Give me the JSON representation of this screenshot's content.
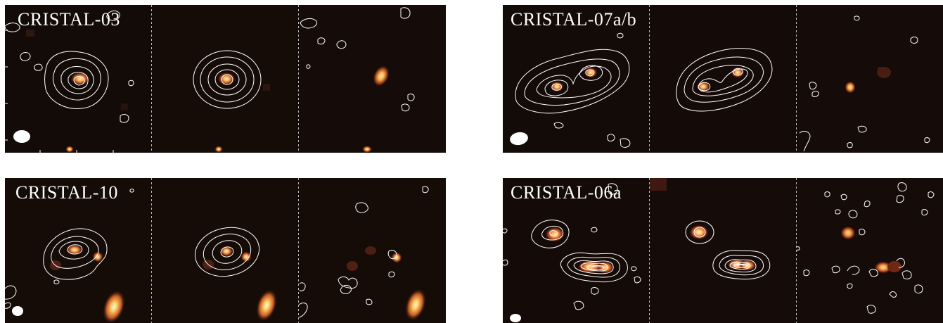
{
  "figure": {
    "panels": [
      {
        "label": "CRISTAL-03"
      },
      {
        "label": "CRISTAL-07a/b"
      },
      {
        "label": "CRISTAL-10"
      },
      {
        "label": "CRISTAL-06a"
      }
    ]
  },
  "colors": {
    "background_dark": "#120a07",
    "contour": "#ffffff",
    "source_core": "#fff1c7",
    "source_warm": "#ff9d34",
    "source_halo": "#7e2f16"
  },
  "icons": {
    "beam": "beam-ellipse-icon",
    "tick": "tick-mark-icon"
  }
}
